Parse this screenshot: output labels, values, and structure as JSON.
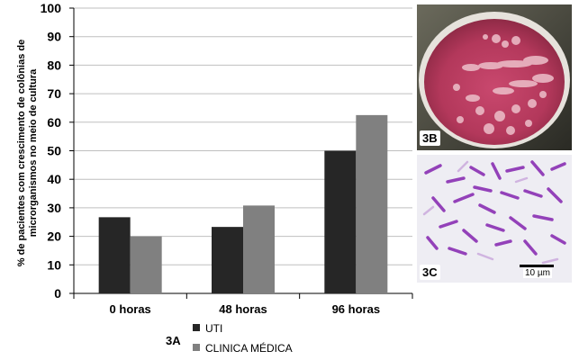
{
  "chart_data": {
    "type": "bar",
    "categories": [
      "0 horas",
      "48 horas",
      "96 horas"
    ],
    "series": [
      {
        "name": "UTI",
        "values": [
          26.7,
          23.3,
          50.0
        ],
        "color": "#262626"
      },
      {
        "name": "CLINICA MÉDICA",
        "values": [
          20.0,
          30.8,
          62.5
        ],
        "color": "#808080"
      }
    ],
    "ylabel_line1": "% de pacientes com crescimento de colônias de",
    "ylabel_line2": "microrganismos no meio de cultura",
    "ylim": [
      0,
      100
    ],
    "yticks": [
      "0",
      "10",
      "20",
      "30",
      "40",
      "50",
      "60",
      "70",
      "80",
      "90",
      "100"
    ],
    "grid": true,
    "legend_position": "bottom",
    "panel_label": "3A"
  },
  "panels": {
    "b_label": "3B",
    "c_label": "3C",
    "scale_bar_label": "10 µm"
  }
}
